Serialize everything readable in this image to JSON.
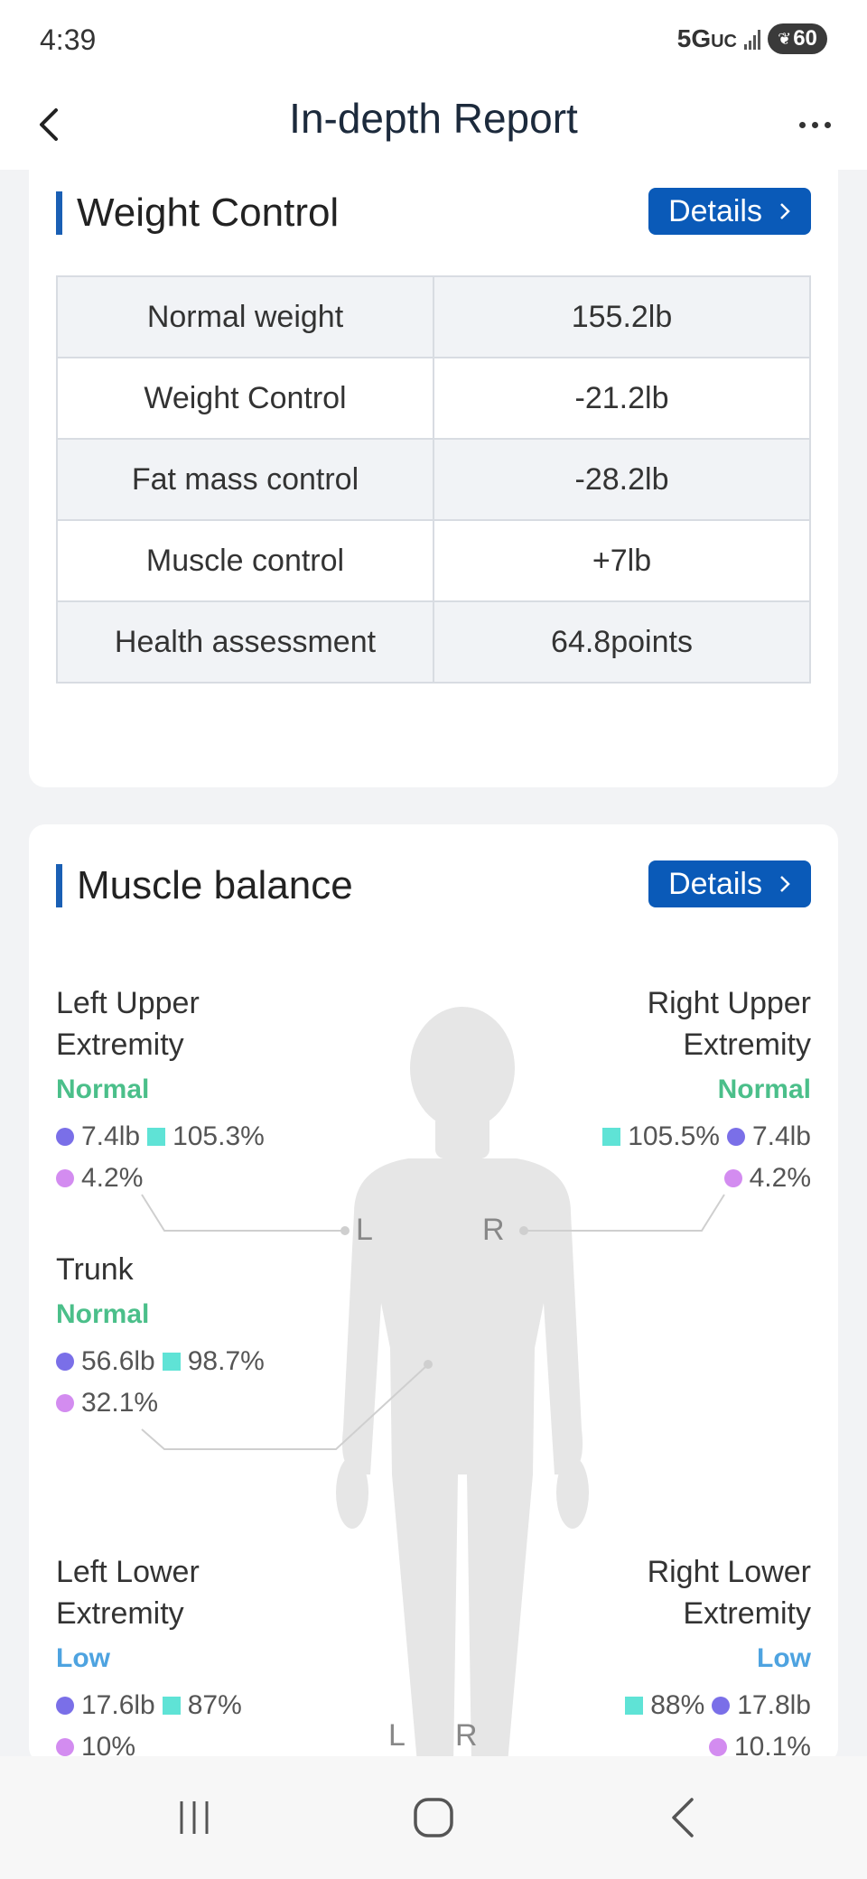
{
  "status": {
    "time": "4:39",
    "network": "5G",
    "network_suffix": "UC",
    "battery": "60"
  },
  "header": {
    "title": "In-depth Report"
  },
  "weight_control": {
    "title": "Weight Control",
    "details_label": "Details",
    "rows": [
      {
        "label": "Normal weight",
        "value": "155.2lb"
      },
      {
        "label": "Weight Control",
        "value": "-21.2lb"
      },
      {
        "label": "Fat mass control",
        "value": "-28.2lb"
      },
      {
        "label": "Muscle control",
        "value": "+7lb"
      },
      {
        "label": "Health assessment",
        "value": "64.8points"
      }
    ]
  },
  "muscle_balance": {
    "title": "Muscle balance",
    "details_label": "Details",
    "body_labels": {
      "upper_left": "L",
      "upper_right": "R",
      "lower_left": "L",
      "lower_right": "R"
    },
    "left_upper": {
      "name_line1": "Left Upper",
      "name_line2": "Extremity",
      "status": "Normal",
      "mass": "7.4lb",
      "ratio": "105.3%",
      "fat": "4.2%"
    },
    "right_upper": {
      "name_line1": "Right Upper",
      "name_line2": "Extremity",
      "status": "Normal",
      "mass": "7.4lb",
      "ratio": "105.5%",
      "fat": "4.2%"
    },
    "trunk": {
      "name_line1": "Trunk",
      "status": "Normal",
      "mass": "56.6lb",
      "ratio": "98.7%",
      "fat": "32.1%"
    },
    "left_lower": {
      "name_line1": "Left Lower",
      "name_line2": "Extremity",
      "status": "Low",
      "mass": "17.6lb",
      "ratio": "87%",
      "fat": "10%"
    },
    "right_lower": {
      "name_line1": "Right Lower",
      "name_line2": "Extremity",
      "status": "Low",
      "mass": "17.8lb",
      "ratio": "88%",
      "fat": "10.1%"
    }
  },
  "colors": {
    "accent": "#0a5ab8",
    "normal": "#4bbf8a",
    "low": "#4ea3e0",
    "mass_dot": "#7a6fe8",
    "ratio_square": "#5fe3d6",
    "fat_dot": "#d38cf0"
  },
  "icons": {
    "back": "chevron-left-icon",
    "more": "more-dots-icon",
    "recents": "recent-apps-icon",
    "home": "home-icon",
    "nav_back": "nav-back-icon"
  }
}
